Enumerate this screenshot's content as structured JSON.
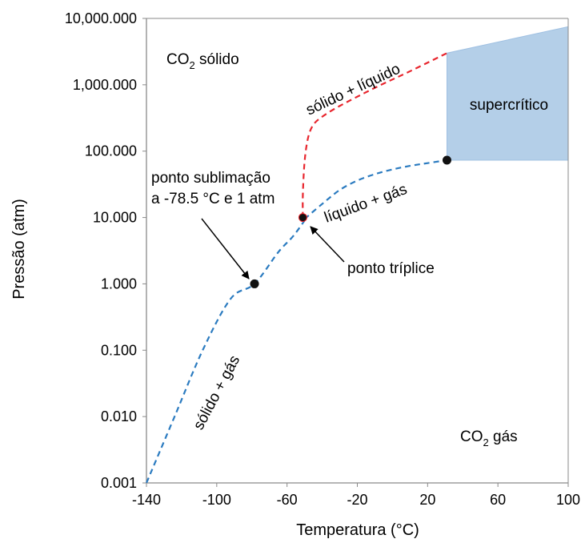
{
  "chart_data": {
    "type": "line",
    "xlabel": "Temperatura (°C)",
    "ylabel": "Pressão (atm)",
    "xlim": [
      -140,
      100
    ],
    "ylim": [
      0.001,
      10000
    ],
    "yscale": "log",
    "x_ticks": [
      -140,
      -100,
      -60,
      -20,
      20,
      60,
      100
    ],
    "x_tick_labels": [
      "-140",
      "-100",
      "-60",
      "-20",
      "20",
      "60",
      "100"
    ],
    "y_ticks": [
      0.001,
      0.01,
      0.1,
      1,
      10,
      100,
      1000,
      10000
    ],
    "y_tick_labels": [
      "0.001",
      "0.010",
      "0.100",
      "1.000",
      "10.000",
      "100.000",
      "1,000.000",
      "10,000.000"
    ],
    "grid": false,
    "series": [
      {
        "name": "sólido + gás",
        "color": "#2b7bc0",
        "style": "dashed",
        "points": [
          [
            -140,
            0.001
          ],
          [
            -124,
            0.01
          ],
          [
            -108,
            0.1
          ],
          [
            -92,
            0.6
          ],
          [
            -78.5,
            1
          ],
          [
            -65,
            3
          ],
          [
            -56.6,
            5.2
          ],
          [
            -50,
            9
          ]
        ]
      },
      {
        "name": "líquido + gás",
        "color": "#2b7bc0",
        "style": "dashed",
        "points": [
          [
            -50,
            9.5
          ],
          [
            -40,
            16
          ],
          [
            -30,
            26
          ],
          [
            -20,
            36
          ],
          [
            -10,
            45
          ],
          [
            0,
            53
          ],
          [
            10,
            60
          ],
          [
            20,
            66
          ],
          [
            31,
            73
          ]
        ]
      },
      {
        "name": "sólido + líquido",
        "color": "#e8262e",
        "style": "dashed",
        "points": [
          [
            -51,
            10
          ],
          [
            -51,
            22
          ],
          [
            -50,
            70
          ],
          [
            -48,
            160
          ],
          [
            -45,
            250
          ],
          [
            -40,
            330
          ],
          [
            -30,
            480
          ],
          [
            -10,
            900
          ],
          [
            10,
            1600
          ],
          [
            31,
            3000
          ]
        ]
      }
    ],
    "supercritical_region": {
      "label": "supercrítico",
      "color": "#b4cfe8",
      "polygon": [
        [
          31,
          73
        ],
        [
          31,
          3000
        ],
        [
          100,
          7500
        ],
        [
          100,
          73
        ]
      ]
    },
    "points": [
      {
        "x": -78.5,
        "y": 1
      },
      {
        "x": -51,
        "y": 10
      },
      {
        "x": 31,
        "y": 73
      }
    ],
    "annotations": {
      "solid_co2": "CO",
      "solid_sub": "2",
      "solid_text": " sólido",
      "gas_co2": "CO",
      "gas_sub": "2",
      "gas_text": " gás",
      "solido_liquido": "sólido + líquido",
      "liquido_gas": "líquido + gás",
      "solido_gas": "sólido + gás",
      "supercritico": "supercrítico",
      "sublimation_line1": "ponto sublimação",
      "sublimation_line2": "a -78.5 °C e 1 atm",
      "triple_point": "ponto tríplice"
    }
  }
}
